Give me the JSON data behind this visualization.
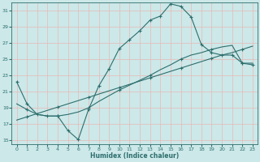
{
  "xlabel": "Humidex (Indice chaleur)",
  "bg_color": "#cce8e8",
  "grid_color": "#e8b8b8",
  "line_color": "#2e6e6e",
  "xlim": [
    -0.5,
    23.5
  ],
  "ylim": [
    14.5,
    32
  ],
  "xticks": [
    0,
    1,
    2,
    3,
    4,
    5,
    6,
    7,
    8,
    9,
    10,
    11,
    12,
    13,
    14,
    15,
    16,
    17,
    18,
    19,
    20,
    21,
    22,
    23
  ],
  "yticks": [
    15,
    17,
    19,
    21,
    23,
    25,
    27,
    29,
    31
  ],
  "curve1_x": [
    0,
    1,
    2,
    3,
    4,
    5,
    6,
    7,
    8,
    9,
    10,
    11,
    12,
    13,
    14,
    15,
    16,
    17,
    18,
    19,
    20,
    21,
    22,
    23
  ],
  "curve1_y": [
    22.2,
    19.5,
    18.2,
    18.0,
    18.0,
    16.2,
    15.1,
    18.8,
    21.7,
    23.8,
    26.3,
    27.4,
    28.5,
    29.8,
    30.3,
    31.8,
    31.5,
    30.2,
    26.8,
    25.8,
    25.5,
    25.5,
    24.5,
    24.3
  ],
  "curve2_x": [
    0,
    1,
    2,
    3,
    4,
    5,
    6,
    7,
    8,
    9,
    10,
    11,
    12,
    13,
    14,
    15,
    16,
    17,
    18,
    19,
    20,
    21,
    22,
    23
  ],
  "curve2_y": [
    19.5,
    18.8,
    18.2,
    18.0,
    18.0,
    18.2,
    18.5,
    19.0,
    19.8,
    20.5,
    21.2,
    21.8,
    22.4,
    23.0,
    23.7,
    24.3,
    25.0,
    25.5,
    25.8,
    26.2,
    26.5,
    26.7,
    24.5,
    24.5
  ],
  "curve3_x": [
    0,
    1,
    2,
    3,
    4,
    5,
    6,
    7,
    8,
    9,
    10,
    11,
    12,
    13,
    14,
    15,
    16,
    17,
    18,
    19,
    20,
    21,
    22,
    23
  ],
  "curve3_y": [
    17.5,
    17.9,
    18.3,
    18.7,
    19.1,
    19.5,
    19.9,
    20.3,
    20.7,
    21.1,
    21.5,
    21.9,
    22.3,
    22.7,
    23.1,
    23.5,
    23.9,
    24.3,
    24.7,
    25.1,
    25.5,
    25.8,
    26.2,
    26.6
  ],
  "markers1_x": [
    0,
    1,
    2,
    3,
    4,
    5,
    6,
    7,
    8,
    9,
    10,
    11,
    12,
    13,
    14,
    15,
    16,
    17,
    18,
    19,
    20,
    21,
    22,
    23
  ],
  "markers1_y": [
    22.2,
    19.5,
    18.2,
    18.0,
    18.0,
    16.2,
    15.1,
    18.8,
    21.7,
    23.8,
    26.3,
    27.4,
    28.5,
    29.8,
    30.3,
    31.8,
    31.5,
    30.2,
    26.8,
    25.8,
    25.5,
    25.5,
    24.5,
    24.3
  ],
  "markers2_x": [
    1,
    4,
    7,
    10,
    13,
    16,
    19,
    22
  ],
  "markers2_y": [
    18.8,
    18.0,
    19.0,
    21.2,
    23.0,
    25.0,
    26.2,
    24.5
  ],
  "markers3_x": [
    1,
    4,
    7,
    10,
    13,
    16,
    19,
    22
  ],
  "markers3_y": [
    17.9,
    19.1,
    20.3,
    21.5,
    22.7,
    23.9,
    25.1,
    26.2
  ]
}
